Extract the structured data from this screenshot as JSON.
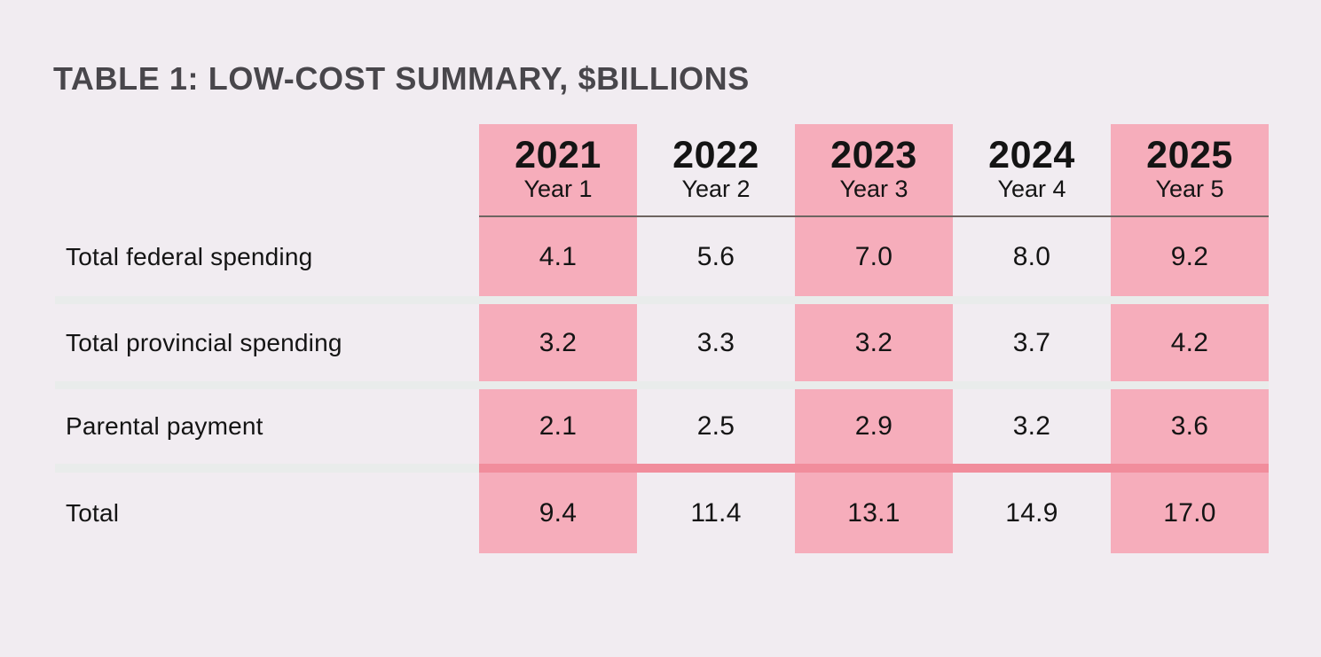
{
  "title": "TABLE 1: LOW-COST SUMMARY, $BILLIONS",
  "chart_data": {
    "type": "table",
    "title": "TABLE 1: LOW-COST SUMMARY, $BILLIONS",
    "unit": "$billions",
    "columns": [
      {
        "year": "2021",
        "sublabel": "Year 1",
        "highlighted": true
      },
      {
        "year": "2022",
        "sublabel": "Year 2",
        "highlighted": false
      },
      {
        "year": "2023",
        "sublabel": "Year 3",
        "highlighted": true
      },
      {
        "year": "2024",
        "sublabel": "Year 4",
        "highlighted": false
      },
      {
        "year": "2025",
        "sublabel": "Year 5",
        "highlighted": true
      }
    ],
    "rows": [
      {
        "label": "Total federal spending",
        "values": [
          "4.1",
          "5.6",
          "7.0",
          "8.0",
          "9.2"
        ]
      },
      {
        "label": "Total provincial spending",
        "values": [
          "3.2",
          "3.3",
          "3.2",
          "3.7",
          "4.2"
        ]
      },
      {
        "label": "Parental payment",
        "values": [
          "2.1",
          "2.5",
          "2.9",
          "3.2",
          "3.6"
        ]
      },
      {
        "label": "Total",
        "values": [
          "9.4",
          "11.4",
          "13.1",
          "14.9",
          "17.0"
        ]
      }
    ]
  },
  "colors": {
    "background": "#f1ecf1",
    "highlight_pink": "#f6adbb",
    "total_divider_pink": "#f18d9c",
    "header_rule": "#6e6561",
    "row_divider": "#e9eceb",
    "title_text": "#48464b",
    "body_text": "#141414"
  }
}
